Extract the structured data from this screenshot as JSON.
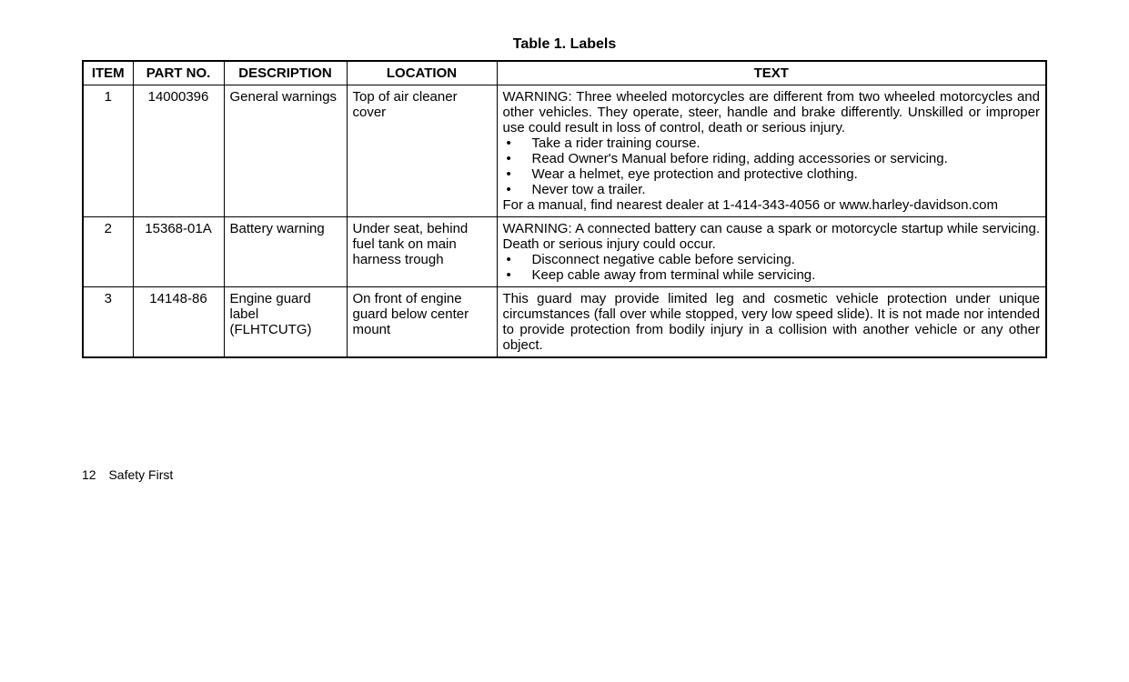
{
  "title": "Table 1. Labels",
  "columns": [
    "ITEM",
    "PART NO.",
    "DESCRIPTION",
    "LOCATION",
    "TEXT"
  ],
  "rows": [
    {
      "item": "1",
      "part": "14000396",
      "desc": "General warnings",
      "location": "Top of air cleaner cover",
      "text_pre": "WARNING: Three wheeled motorcycles are different from two wheeled motorcycles and other vehicles. They operate, steer, handle and brake differently. Unskilled or improper use could result in loss of control, death or serious injury.",
      "bullets": [
        "Take a rider training course.",
        "Read Owner's Manual before riding, adding accessories or servicing.",
        "Wear a helmet, eye protection and protective clothing.",
        "Never tow a trailer."
      ],
      "text_post": "For a manual, find nearest dealer at 1-414-343-4056 or www.harley-davidson.com"
    },
    {
      "item": "2",
      "part": "15368-01A",
      "desc": "Battery warning",
      "location": "Under seat, behind fuel tank on main harness trough",
      "text_pre": "WARNING: A connected battery can cause a spark or motorcycle startup while servicing. Death or serious injury could occur.",
      "bullets": [
        "Disconnect negative cable before servicing.",
        "Keep cable away from terminal while servicing."
      ],
      "text_post": ""
    },
    {
      "item": "3",
      "part": "14148-86",
      "desc": "Engine guard label (FLHTCUTG)",
      "location": "On front of engine guard below center mount",
      "text_pre": "This guard may provide limited leg and cosmetic vehicle protection under unique circumstances (fall over while stopped, very low speed slide). It is not made nor intended to provide protection from bodily injury in a collision with another vehicle or any other object.",
      "bullets": [],
      "text_post": ""
    }
  ],
  "footer": {
    "page": "12",
    "section": "Safety First"
  }
}
